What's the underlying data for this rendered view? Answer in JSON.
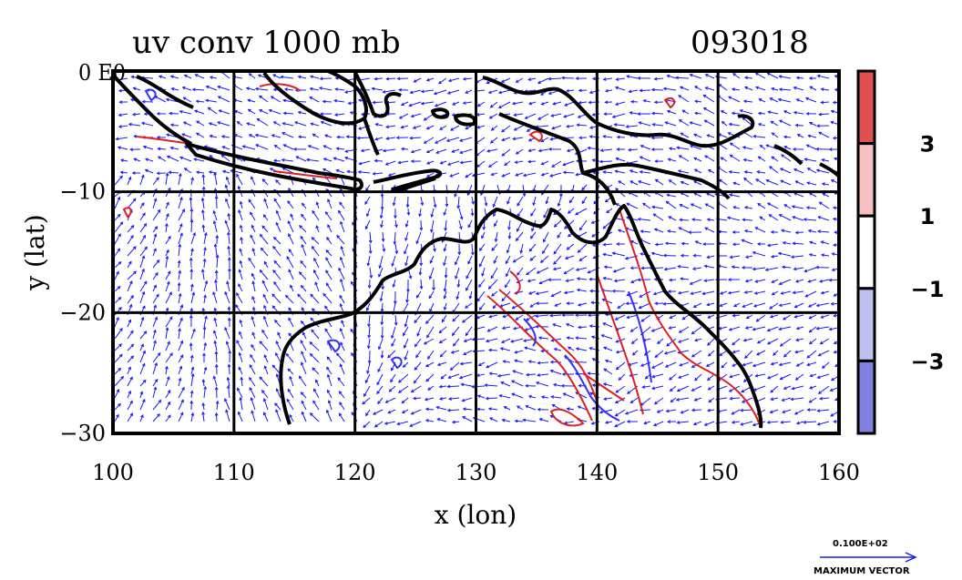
{
  "chart_data": {
    "type": "vector-field-contour-map",
    "title": "uv conv 1000 mb",
    "time_label": "093018",
    "xlabel": "x (lon)",
    "ylabel": "y (lat)",
    "xlim": [
      100,
      160
    ],
    "ylim": [
      -30,
      0
    ],
    "x_ticks": [
      100,
      110,
      120,
      130,
      140,
      150,
      160
    ],
    "x_tick_labels": [
      "100",
      "110",
      "120",
      "130",
      "140",
      "150",
      "160"
    ],
    "y_ticks": [
      0,
      -10,
      -20,
      -30
    ],
    "y_tick_labels": [
      "0",
      "−10",
      "−20",
      "−30"
    ],
    "y_top_label": "0 E0",
    "grid": true,
    "colorbar": {
      "levels": [
        -5,
        -3,
        -1,
        1,
        3,
        5
      ],
      "tick_labels": [
        "3",
        "1",
        "−1",
        "−3"
      ],
      "colors": [
        "#8080e0",
        "#c0c0f0",
        "#ffffff",
        "#f4c0c0",
        "#e05050"
      ]
    },
    "vector_key": {
      "value_label": "0.100E+02",
      "caption": "MAXIMUM VECTOR"
    },
    "colors": {
      "vectors": "#1a1aff",
      "positive_contour": "#e02020",
      "negative_contour": "#3030ff",
      "coastline": "#000000"
    }
  }
}
